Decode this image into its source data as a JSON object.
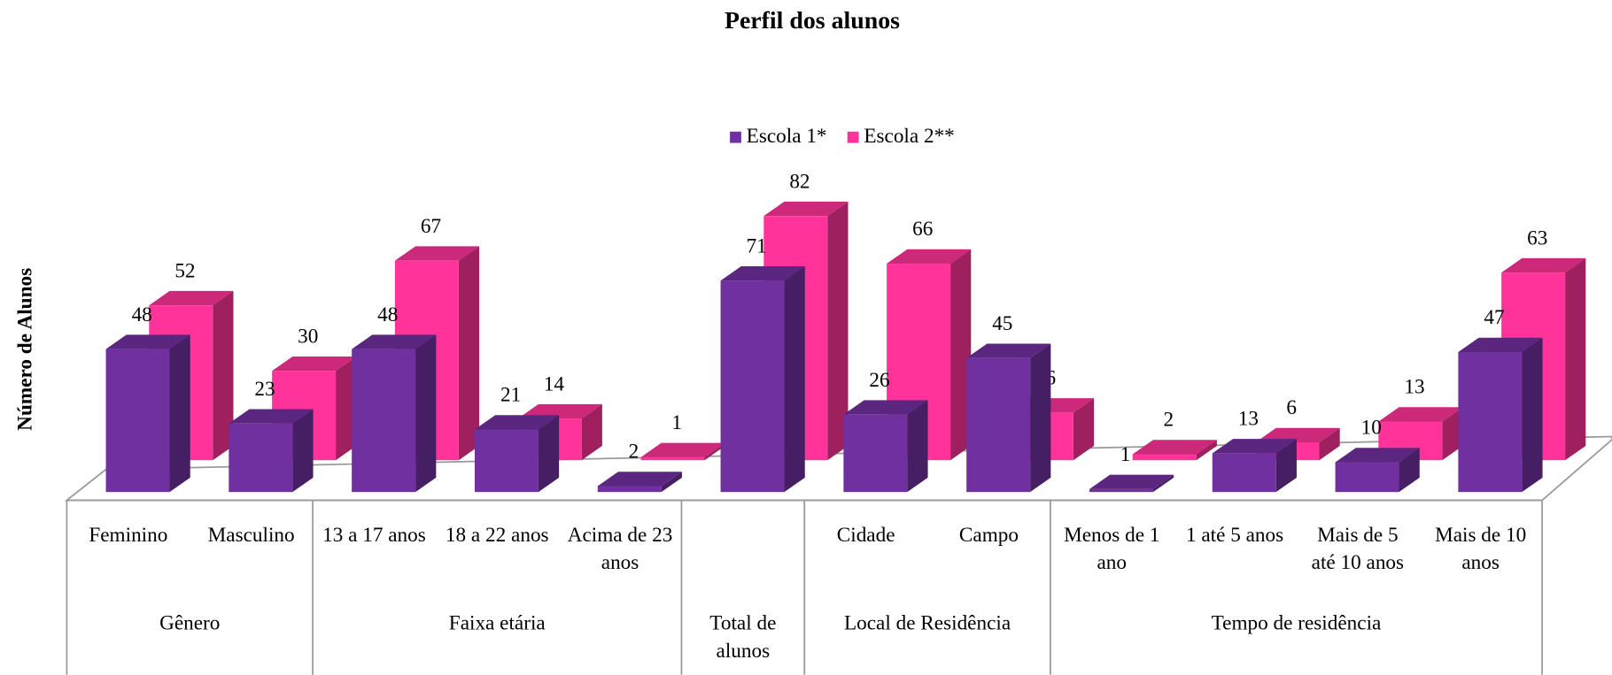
{
  "chart_data": {
    "type": "bar3d",
    "title": "Perfil dos alunos",
    "y_label": "Número de Alunos",
    "groups": [
      {
        "label": "Gênero",
        "categories": [
          "Feminino",
          "Masculino"
        ]
      },
      {
        "label": "Faixa etária",
        "categories": [
          "13 a 17 anos",
          "18 a 22 anos",
          "Acima de 23 anos"
        ]
      },
      {
        "label": "Total de alunos",
        "categories": [
          null
        ]
      },
      {
        "label": "Local de Residência",
        "categories": [
          "Cidade",
          "Campo"
        ]
      },
      {
        "label": "Tempo de residência",
        "categories": [
          "Menos de 1 ano",
          "1 até 5 anos",
          "Mais de 5 até 10 anos",
          "Mais de 10 anos"
        ]
      }
    ],
    "series": [
      {
        "name": "Escola 1*",
        "color": "#7030a0",
        "values": [
          48,
          23,
          48,
          21,
          2,
          71,
          26,
          45,
          1,
          13,
          10,
          47
        ]
      },
      {
        "name": "Escola 2**",
        "color": "#ff3399",
        "values": [
          52,
          30,
          67,
          14,
          1,
          82,
          66,
          16,
          2,
          6,
          13,
          63
        ]
      }
    ],
    "ylim": [
      0,
      90
    ],
    "legend": "top"
  }
}
